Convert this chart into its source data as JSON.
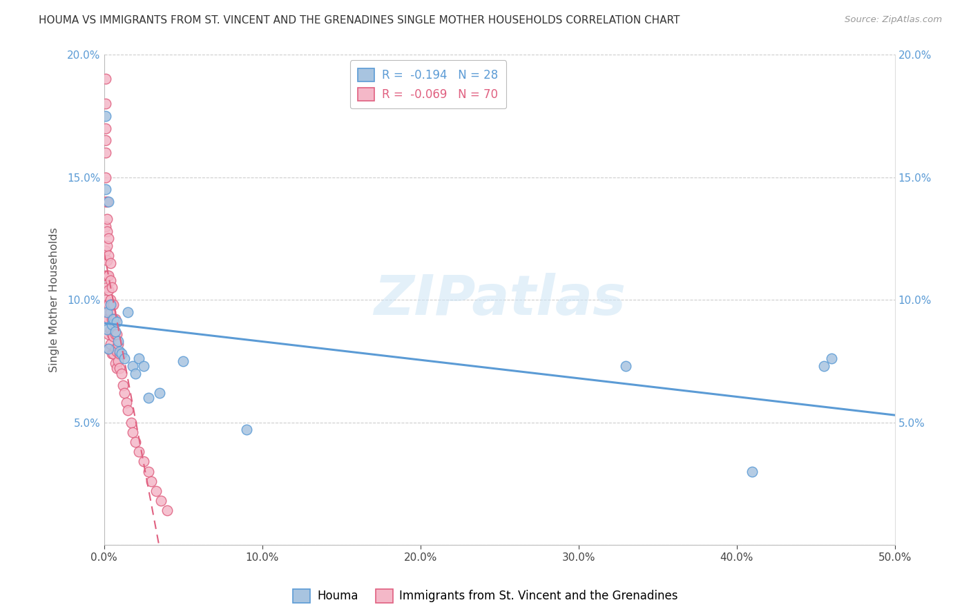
{
  "title": "HOUMA VS IMMIGRANTS FROM ST. VINCENT AND THE GRENADINES SINGLE MOTHER HOUSEHOLDS CORRELATION CHART",
  "source": "Source: ZipAtlas.com",
  "ylabel": "Single Mother Households",
  "xlabel": "",
  "xlim": [
    0,
    0.5
  ],
  "ylim": [
    0,
    0.2
  ],
  "xticks": [
    0.0,
    0.1,
    0.2,
    0.3,
    0.4,
    0.5
  ],
  "yticks": [
    0.0,
    0.05,
    0.1,
    0.15,
    0.2
  ],
  "xtick_labels": [
    "0.0%",
    "10.0%",
    "20.0%",
    "30.0%",
    "40.0%",
    "50.0%"
  ],
  "ytick_labels": [
    "",
    "5.0%",
    "10.0%",
    "15.0%",
    "20.0%"
  ],
  "right_ytick_labels": [
    "",
    "5.0%",
    "10.0%",
    "15.0%",
    "20.0%"
  ],
  "houma_color": "#a8c4e0",
  "houma_edge_color": "#5b9bd5",
  "immigrants_color": "#f4b8c8",
  "immigrants_edge_color": "#e06080",
  "houma_line_color": "#5b9bd5",
  "immigrants_line_color": "#e8a0b0",
  "legend_label1": "R =  -0.194   N = 28",
  "legend_label2": "R =  -0.069   N = 70",
  "legend_series1": "Houma",
  "legend_series2": "Immigrants from St. Vincent and the Grenadines",
  "watermark": "ZIPatlas",
  "houma_x": [
    0.001,
    0.001,
    0.002,
    0.002,
    0.003,
    0.003,
    0.004,
    0.005,
    0.006,
    0.007,
    0.008,
    0.009,
    0.01,
    0.011,
    0.013,
    0.015,
    0.018,
    0.02,
    0.022,
    0.025,
    0.028,
    0.035,
    0.05,
    0.09,
    0.33,
    0.41,
    0.455,
    0.46
  ],
  "houma_y": [
    0.175,
    0.145,
    0.095,
    0.088,
    0.14,
    0.08,
    0.098,
    0.09,
    0.092,
    0.087,
    0.091,
    0.083,
    0.079,
    0.078,
    0.076,
    0.095,
    0.073,
    0.07,
    0.076,
    0.073,
    0.06,
    0.062,
    0.075,
    0.047,
    0.073,
    0.03,
    0.073,
    0.076
  ],
  "immigrants_x": [
    0.001,
    0.001,
    0.001,
    0.001,
    0.001,
    0.001,
    0.001,
    0.001,
    0.001,
    0.001,
    0.001,
    0.001,
    0.002,
    0.002,
    0.002,
    0.002,
    0.002,
    0.002,
    0.002,
    0.002,
    0.002,
    0.003,
    0.003,
    0.003,
    0.003,
    0.003,
    0.003,
    0.003,
    0.003,
    0.004,
    0.004,
    0.004,
    0.004,
    0.004,
    0.004,
    0.005,
    0.005,
    0.005,
    0.005,
    0.005,
    0.006,
    0.006,
    0.006,
    0.006,
    0.007,
    0.007,
    0.007,
    0.007,
    0.008,
    0.008,
    0.008,
    0.009,
    0.009,
    0.01,
    0.01,
    0.011,
    0.012,
    0.013,
    0.014,
    0.015,
    0.017,
    0.018,
    0.02,
    0.022,
    0.025,
    0.028,
    0.03,
    0.033,
    0.036,
    0.04
  ],
  "immigrants_y": [
    0.19,
    0.18,
    0.17,
    0.165,
    0.16,
    0.15,
    0.14,
    0.13,
    0.12,
    0.11,
    0.1,
    0.095,
    0.14,
    0.133,
    0.128,
    0.122,
    0.116,
    0.11,
    0.105,
    0.098,
    0.092,
    0.125,
    0.118,
    0.11,
    0.104,
    0.098,
    0.092,
    0.086,
    0.08,
    0.115,
    0.108,
    0.1,
    0.095,
    0.088,
    0.082,
    0.105,
    0.098,
    0.092,
    0.086,
    0.078,
    0.098,
    0.092,
    0.085,
    0.078,
    0.092,
    0.086,
    0.08,
    0.074,
    0.086,
    0.079,
    0.072,
    0.082,
    0.075,
    0.078,
    0.072,
    0.07,
    0.065,
    0.062,
    0.058,
    0.055,
    0.05,
    0.046,
    0.042,
    0.038,
    0.034,
    0.03,
    0.026,
    0.022,
    0.018,
    0.014
  ]
}
